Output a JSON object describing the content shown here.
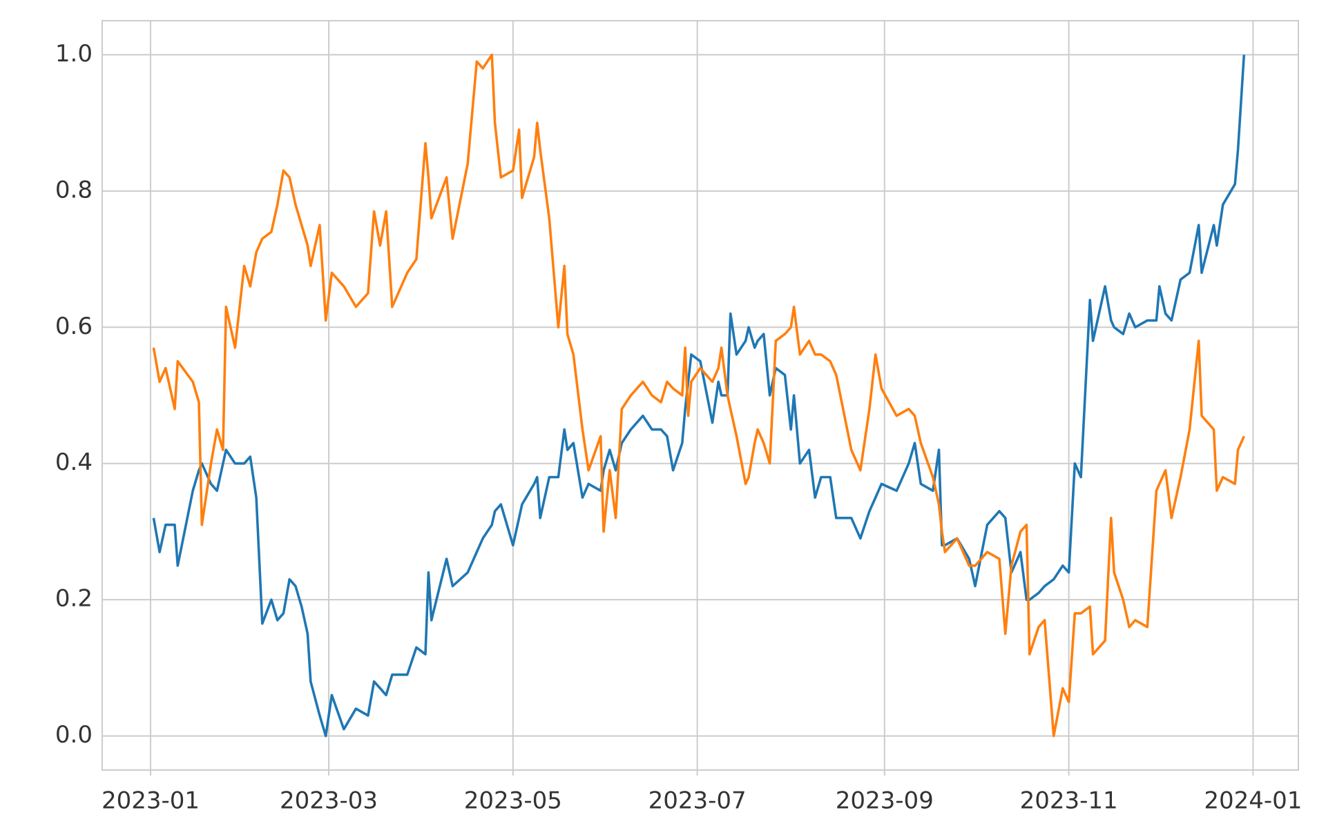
{
  "chart_data": {
    "type": "line",
    "x": [
      "2023-01-02",
      "2023-01-04",
      "2023-01-06",
      "2023-01-09",
      "2023-01-10",
      "2023-01-15",
      "2023-01-17",
      "2023-01-18",
      "2023-01-21",
      "2023-01-23",
      "2023-01-25",
      "2023-01-26",
      "2023-01-29",
      "2023-02-01",
      "2023-02-03",
      "2023-02-05",
      "2023-02-07",
      "2023-02-10",
      "2023-02-12",
      "2023-02-14",
      "2023-02-16",
      "2023-02-18",
      "2023-02-20",
      "2023-02-22",
      "2023-02-23",
      "2023-02-26",
      "2023-02-28",
      "2023-03-02",
      "2023-03-06",
      "2023-03-10",
      "2023-03-14",
      "2023-03-16",
      "2023-03-18",
      "2023-03-20",
      "2023-03-22",
      "2023-03-27",
      "2023-03-30",
      "2023-04-02",
      "2023-04-03",
      "2023-04-04",
      "2023-04-09",
      "2023-04-11",
      "2023-04-16",
      "2023-04-19",
      "2023-04-21",
      "2023-04-24",
      "2023-04-25",
      "2023-04-27",
      "2023-05-01",
      "2023-05-03",
      "2023-05-04",
      "2023-05-08",
      "2023-05-09",
      "2023-05-10",
      "2023-05-13",
      "2023-05-16",
      "2023-05-18",
      "2023-05-19",
      "2023-05-21",
      "2023-05-24",
      "2023-05-26",
      "2023-05-30",
      "2023-05-31",
      "2023-06-02",
      "2023-06-04",
      "2023-06-06",
      "2023-06-09",
      "2023-06-13",
      "2023-06-16",
      "2023-06-19",
      "2023-06-21",
      "2023-06-23",
      "2023-06-26",
      "2023-06-27",
      "2023-06-28",
      "2023-06-29",
      "2023-07-02",
      "2023-07-06",
      "2023-07-08",
      "2023-07-09",
      "2023-07-11",
      "2023-07-12",
      "2023-07-14",
      "2023-07-17",
      "2023-07-18",
      "2023-07-20",
      "2023-07-21",
      "2023-07-23",
      "2023-07-25",
      "2023-07-27",
      "2023-07-30",
      "2023-08-01",
      "2023-08-02",
      "2023-08-04",
      "2023-08-07",
      "2023-08-09",
      "2023-08-11",
      "2023-08-14",
      "2023-08-16",
      "2023-08-21",
      "2023-08-24",
      "2023-08-27",
      "2023-08-29",
      "2023-08-31",
      "2023-09-05",
      "2023-09-09",
      "2023-09-11",
      "2023-09-13",
      "2023-09-17",
      "2023-09-19",
      "2023-09-20",
      "2023-09-21",
      "2023-09-25",
      "2023-09-29",
      "2023-10-01",
      "2023-10-05",
      "2023-10-09",
      "2023-10-11",
      "2023-10-13",
      "2023-10-16",
      "2023-10-18",
      "2023-10-19",
      "2023-10-22",
      "2023-10-24",
      "2023-10-27",
      "2023-10-30",
      "2023-11-01",
      "2023-11-03",
      "2023-11-05",
      "2023-11-08",
      "2023-11-09",
      "2023-11-13",
      "2023-11-15",
      "2023-11-16",
      "2023-11-19",
      "2023-11-21",
      "2023-11-23",
      "2023-11-27",
      "2023-11-30",
      "2023-12-01",
      "2023-12-03",
      "2023-12-05",
      "2023-12-08",
      "2023-12-11",
      "2023-12-14",
      "2023-12-15",
      "2023-12-19",
      "2023-12-20",
      "2023-12-22",
      "2023-12-26",
      "2023-12-27",
      "2023-12-29"
    ],
    "series": [
      {
        "color": "#1f77b4",
        "values": [
          0.32,
          0.27,
          0.31,
          0.31,
          0.25,
          0.36,
          0.39,
          0.4,
          0.37,
          0.36,
          0.4,
          0.42,
          0.4,
          0.4,
          0.41,
          0.35,
          0.165,
          0.2,
          0.17,
          0.18,
          0.23,
          0.22,
          0.19,
          0.15,
          0.08,
          0.03,
          0.0,
          0.06,
          0.01,
          0.04,
          0.03,
          0.08,
          0.07,
          0.06,
          0.09,
          0.09,
          0.13,
          0.12,
          0.24,
          0.17,
          0.26,
          0.22,
          0.24,
          0.27,
          0.29,
          0.31,
          0.33,
          0.34,
          0.28,
          0.32,
          0.34,
          0.37,
          0.38,
          0.32,
          0.38,
          0.38,
          0.45,
          0.42,
          0.43,
          0.35,
          0.37,
          0.36,
          0.39,
          0.42,
          0.39,
          0.43,
          0.45,
          0.47,
          0.45,
          0.45,
          0.44,
          0.39,
          0.43,
          0.48,
          0.52,
          0.56,
          0.55,
          0.46,
          0.52,
          0.5,
          0.5,
          0.62,
          0.56,
          0.58,
          0.6,
          0.57,
          0.58,
          0.59,
          0.5,
          0.54,
          0.53,
          0.45,
          0.5,
          0.4,
          0.42,
          0.35,
          0.38,
          0.38,
          0.32,
          0.32,
          0.29,
          0.33,
          0.35,
          0.37,
          0.36,
          0.4,
          0.43,
          0.37,
          0.36,
          0.42,
          0.28,
          0.28,
          0.29,
          0.26,
          0.22,
          0.31,
          0.33,
          0.32,
          0.24,
          0.27,
          0.2,
          0.2,
          0.21,
          0.22,
          0.23,
          0.25,
          0.24,
          0.4,
          0.38,
          0.64,
          0.58,
          0.66,
          0.61,
          0.6,
          0.59,
          0.62,
          0.6,
          0.61,
          0.61,
          0.66,
          0.62,
          0.61,
          0.67,
          0.68,
          0.75,
          0.68,
          0.75,
          0.72,
          0.78,
          0.81,
          0.86,
          1.0
        ]
      },
      {
        "color": "#ff7f0e",
        "values": [
          0.57,
          0.52,
          0.54,
          0.48,
          0.55,
          0.52,
          0.49,
          0.31,
          0.4,
          0.45,
          0.42,
          0.63,
          0.57,
          0.69,
          0.66,
          0.71,
          0.73,
          0.74,
          0.78,
          0.83,
          0.82,
          0.78,
          0.75,
          0.72,
          0.69,
          0.75,
          0.61,
          0.68,
          0.66,
          0.63,
          0.65,
          0.77,
          0.72,
          0.77,
          0.63,
          0.68,
          0.7,
          0.87,
          0.82,
          0.76,
          0.82,
          0.73,
          0.84,
          0.99,
          0.98,
          1.0,
          0.9,
          0.82,
          0.83,
          0.89,
          0.79,
          0.85,
          0.9,
          0.86,
          0.76,
          0.6,
          0.69,
          0.59,
          0.56,
          0.45,
          0.39,
          0.44,
          0.3,
          0.39,
          0.32,
          0.48,
          0.5,
          0.52,
          0.5,
          0.49,
          0.52,
          0.51,
          0.5,
          0.57,
          0.47,
          0.52,
          0.54,
          0.52,
          0.54,
          0.57,
          0.5,
          0.48,
          0.44,
          0.37,
          0.38,
          0.43,
          0.45,
          0.43,
          0.4,
          0.58,
          0.59,
          0.6,
          0.63,
          0.56,
          0.58,
          0.56,
          0.56,
          0.55,
          0.53,
          0.42,
          0.39,
          0.48,
          0.56,
          0.51,
          0.47,
          0.48,
          0.47,
          0.43,
          0.38,
          0.34,
          0.3,
          0.27,
          0.29,
          0.25,
          0.25,
          0.27,
          0.26,
          0.15,
          0.25,
          0.3,
          0.31,
          0.12,
          0.16,
          0.17,
          0.0,
          0.07,
          0.05,
          0.18,
          0.18,
          0.19,
          0.12,
          0.14,
          0.32,
          0.24,
          0.2,
          0.16,
          0.17,
          0.16,
          0.36,
          0.37,
          0.39,
          0.32,
          0.38,
          0.45,
          0.58,
          0.47,
          0.45,
          0.36,
          0.38,
          0.37,
          0.42,
          0.44
        ]
      }
    ],
    "xlim": [
      "2022-12-16",
      "2024-01-16"
    ],
    "xticks": [
      "2023-01",
      "2023-03",
      "2023-05",
      "2023-07",
      "2023-09",
      "2023-11",
      "2024-01"
    ],
    "ylim": [
      -0.05,
      1.05
    ],
    "yticks": [
      {
        "value": 0,
        "label": "0.0"
      },
      {
        "value": 0.2,
        "label": "0.2"
      },
      {
        "value": 0.4,
        "label": "0.4"
      },
      {
        "value": 0.6,
        "label": "0.6"
      },
      {
        "value": 0.8,
        "label": "0.8"
      },
      {
        "value": 1,
        "label": "1.0"
      }
    ],
    "grid": true
  }
}
